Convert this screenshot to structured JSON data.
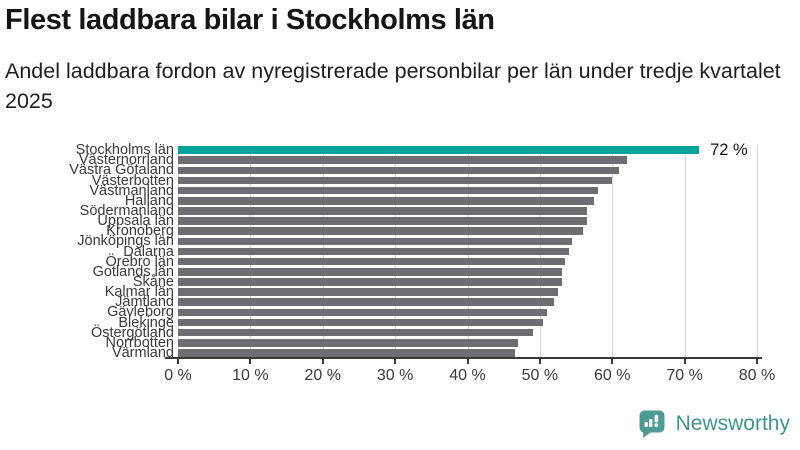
{
  "header": {
    "title": "Flest laddbara bilar i Stockholms län",
    "subtitle": "Andel laddbara fordon av nyregistrerade personbilar per län under tredje kvartalet 2025"
  },
  "chart_data": {
    "type": "bar",
    "orientation": "horizontal",
    "title": "Flest laddbara bilar i Stockholms län",
    "subtitle": "Andel laddbara fordon av nyregistrerade personbilar per län under tredje kvartalet 2025",
    "categories": [
      "Stockholms län",
      "Västernorrland",
      "Västra Götaland",
      "Västerbotten",
      "Västmanland",
      "Halland",
      "Södermanland",
      "Uppsala län",
      "Kronoberg",
      "Jönköpings län",
      "Dalarna",
      "Örebro län",
      "Gotlands län",
      "Skåne",
      "Kalmar län",
      "Jämtland",
      "Gävleborg",
      "Blekinge",
      "Östergötland",
      "Norrbotten",
      "Värmland"
    ],
    "values": [
      72,
      62,
      61,
      60,
      58,
      57.5,
      56.5,
      56.5,
      56,
      54.5,
      54,
      53.5,
      53,
      53,
      52.5,
      52,
      51,
      50.5,
      49,
      47,
      46.5
    ],
    "unit": "%",
    "xlim": [
      0,
      80
    ],
    "xtick_values": [
      0,
      10,
      20,
      30,
      40,
      50,
      60,
      70,
      80
    ],
    "xtick_labels": [
      "0 %",
      "10 %",
      "20 %",
      "30 %",
      "40 %",
      "50 %",
      "60 %",
      "70 %",
      "80 %"
    ],
    "highlight_index": 0,
    "value_label": "72 %",
    "grid": "vertical",
    "legend": "none",
    "colors": {
      "highlight": "#00a49b",
      "bar": "#6d6d72"
    }
  },
  "footer": {
    "brand": "Newsworthy",
    "brand_color": "#3f948e",
    "icon_color": "#4d9b95",
    "logo_icon": "newsworthy-speech-bubble-chart-icon"
  }
}
